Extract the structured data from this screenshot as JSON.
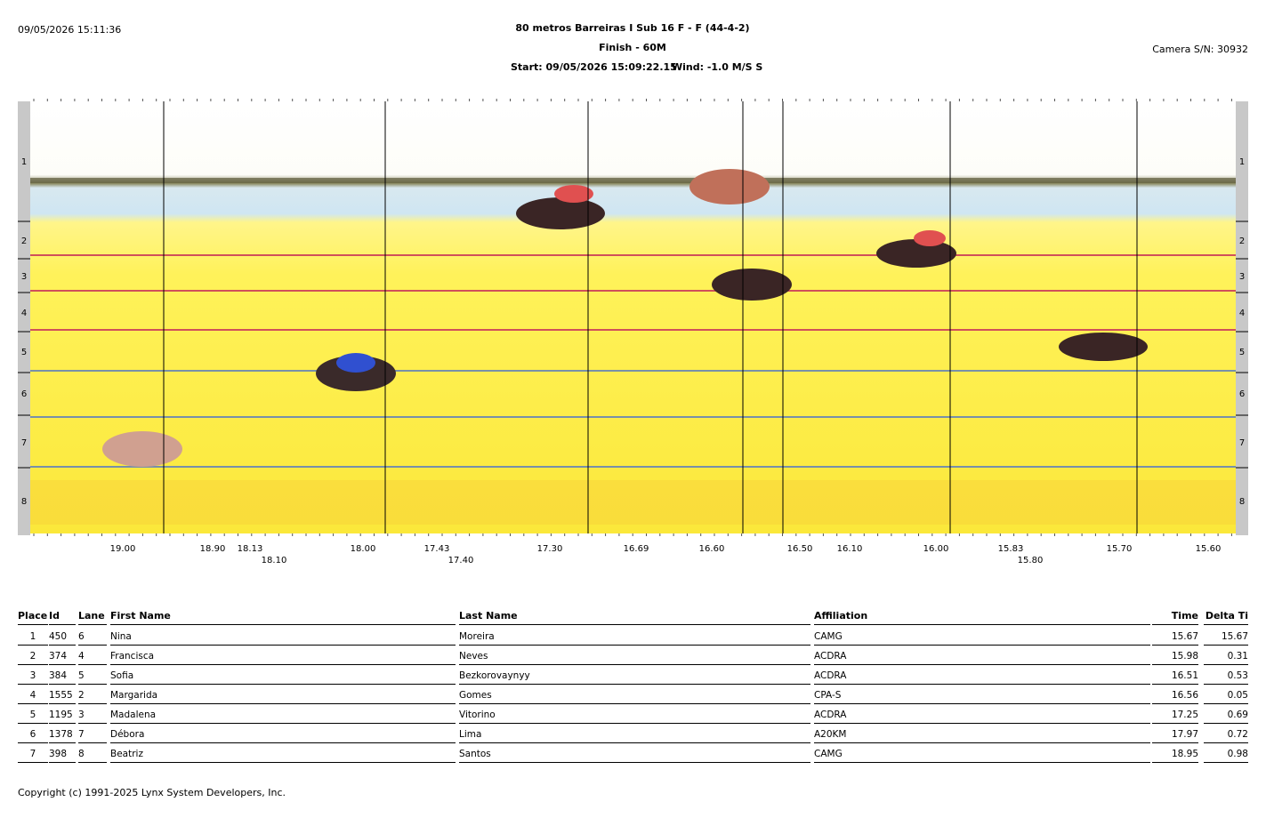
{
  "header": {
    "timestamp": "09/05/2026 15:11:36",
    "title": "80 metros Barreiras I Sub 16 F - F (44-4-2)",
    "subtitle": "Finish - 60M",
    "start": "Start: 09/05/2026 15:09:22.15",
    "wind": "Wind: -1.0 M/S S",
    "camera": "Camera S/N: 30932"
  },
  "photo": {
    "lanes": [
      "1",
      "2",
      "3",
      "4",
      "5",
      "6",
      "7",
      "8"
    ],
    "time_labels_top": [
      "19.00",
      "18.90",
      "18.13",
      "18.00",
      "17.43",
      "17.30",
      "16.69",
      "16.60",
      "16.50",
      "16.10",
      "16.00",
      "15.83",
      "15.70",
      "15.60"
    ],
    "time_labels_bottom": [
      "18.10",
      "17.40",
      "15.80"
    ]
  },
  "table": {
    "columns": [
      "Place",
      "Id",
      "Lane",
      "First Name",
      "Last Name",
      "Affiliation",
      "Time",
      "Delta Ti"
    ],
    "rows": [
      [
        "1",
        "450",
        "6",
        "Nina",
        "Moreira",
        "CAMG",
        "15.67",
        "15.67"
      ],
      [
        "2",
        "374",
        "4",
        "Francisca",
        "Neves",
        "ACDRA",
        "15.98",
        "0.31"
      ],
      [
        "3",
        "384",
        "5",
        "Sofia",
        "Bezkorovaynyy",
        "ACDRA",
        "16.51",
        "0.53"
      ],
      [
        "4",
        "1555",
        "2",
        "Margarida",
        "Gomes",
        "CPA-S",
        "16.56",
        "0.05"
      ],
      [
        "5",
        "1195",
        "3",
        "Madalena",
        "Vitorino",
        "ACDRA",
        "17.25",
        "0.69"
      ],
      [
        "6",
        "1378",
        "7",
        "Débora",
        "Lima",
        "A20KM",
        "17.97",
        "0.72"
      ],
      [
        "7",
        "398",
        "8",
        "Beatriz",
        "Santos",
        "CAMG",
        "18.95",
        "0.98"
      ]
    ]
  },
  "footer": {
    "copyright": "Copyright (c) 1991-2025 Lynx System Developers, Inc."
  }
}
